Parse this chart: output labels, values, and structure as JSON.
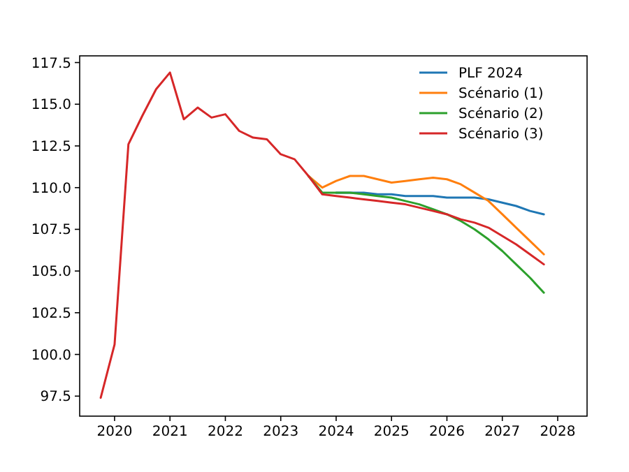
{
  "chart_data": {
    "type": "line",
    "xlim": [
      2019.37,
      2028.53
    ],
    "xticks": [
      2020,
      2021,
      2022,
      2023,
      2024,
      2025,
      2026,
      2027,
      2028
    ],
    "ylim": [
      96.3,
      117.9
    ],
    "yticks": [
      {
        "value": 97.5,
        "label": "97.5"
      },
      {
        "value": 100,
        "label": "100.0"
      },
      {
        "value": 102.5,
        "label": "102.5"
      },
      {
        "value": 105,
        "label": "105.0"
      },
      {
        "value": 107.5,
        "label": "107.5"
      },
      {
        "value": 110,
        "label": "110.0"
      },
      {
        "value": 112.5,
        "label": "112.5"
      },
      {
        "value": 115,
        "label": "115.0"
      },
      {
        "value": 117.5,
        "label": "117.5"
      }
    ],
    "legend": "top right",
    "grid": false,
    "series": [
      {
        "name": "PLF 2024",
        "color": "#1f77b4",
        "x": [
          2024,
          2024.25,
          2024.5,
          2024.75,
          2025,
          2025.25,
          2025.5,
          2025.75,
          2026,
          2026.25,
          2026.5,
          2026.75,
          2027,
          2027.25,
          2027.5,
          2027.75
        ],
        "values": [
          109.7,
          109.7,
          109.7,
          109.6,
          109.6,
          109.5,
          109.5,
          109.5,
          109.4,
          109.4,
          109.4,
          109.3,
          109.1,
          108.9,
          108.6,
          108.4
        ]
      },
      {
        "name": "Scénario (1)",
        "color": "#ff7f0e",
        "x": [
          2023.5,
          2023.75,
          2024,
          2024.25,
          2024.5,
          2024.75,
          2025,
          2025.25,
          2025.5,
          2025.75,
          2026,
          2026.25,
          2026.5,
          2026.75,
          2027,
          2027.25,
          2027.5,
          2027.75
        ],
        "values": [
          110.7,
          110.0,
          110.4,
          110.7,
          110.7,
          110.5,
          110.3,
          110.4,
          110.5,
          110.6,
          110.5,
          110.2,
          109.7,
          109.2,
          108.4,
          107.6,
          106.8,
          106.0
        ]
      },
      {
        "name": "Scénario (2)",
        "color": "#2ca02c",
        "x": [
          2023.5,
          2023.75,
          2024,
          2024.25,
          2024.5,
          2024.75,
          2025,
          2025.25,
          2025.5,
          2025.75,
          2026,
          2026.25,
          2026.5,
          2026.75,
          2027,
          2027.25,
          2027.5,
          2027.75
        ],
        "values": [
          110.7,
          109.7,
          109.7,
          109.7,
          109.6,
          109.5,
          109.4,
          109.2,
          109.0,
          108.7,
          108.4,
          108.0,
          107.5,
          106.9,
          106.2,
          105.4,
          104.6,
          103.7
        ]
      },
      {
        "name": "Scénario (3)",
        "color": "#d62728",
        "x": [
          2019.75,
          2020,
          2020.25,
          2020.5,
          2020.75,
          2021,
          2021.25,
          2021.5,
          2021.75,
          2022,
          2022.25,
          2022.5,
          2022.75,
          2023,
          2023.25,
          2023.5,
          2023.75,
          2024,
          2024.25,
          2024.5,
          2024.75,
          2025,
          2025.25,
          2025.5,
          2025.75,
          2026,
          2026.25,
          2026.5,
          2026.75,
          2027,
          2027.25,
          2027.5,
          2027.75
        ],
        "values": [
          97.4,
          100.6,
          112.6,
          114.3,
          115.9,
          116.9,
          114.1,
          114.8,
          114.2,
          114.4,
          113.4,
          113.0,
          112.9,
          112.0,
          111.7,
          110.7,
          109.6,
          109.5,
          109.4,
          109.3,
          109.2,
          109.1,
          109.0,
          108.8,
          108.6,
          108.4,
          108.1,
          107.9,
          107.6,
          107.1,
          106.6,
          106.0,
          105.4
        ]
      }
    ]
  }
}
